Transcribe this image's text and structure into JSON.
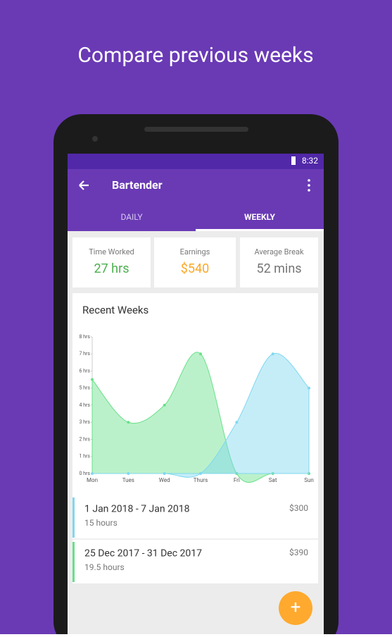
{
  "headline": "Compare previous weeks",
  "status": {
    "time": "8:32"
  },
  "app_bar": {
    "title": "Bartender"
  },
  "tabs": [
    "DAILY",
    "WEEKLY"
  ],
  "stats": [
    {
      "label": "Time Worked",
      "value": "27 hrs",
      "color": "#4caf50"
    },
    {
      "label": "Earnings",
      "value": "$540",
      "color": "#ffa726"
    },
    {
      "label": "Average Break",
      "value": "52 mins",
      "color": "#757575"
    }
  ],
  "chart_data": {
    "type": "area",
    "title": "Recent Weeks",
    "categories": [
      "Mon",
      "Tues",
      "Wed",
      "Thurs",
      "Fri",
      "Sat",
      "Sun"
    ],
    "series": [
      {
        "color": "#69e08a",
        "values": [
          5.5,
          3,
          4,
          7,
          0,
          0,
          0
        ]
      },
      {
        "color": "#7fd8f0",
        "values": [
          0,
          0,
          0,
          0,
          3,
          7,
          5
        ]
      }
    ],
    "ylim": [
      0,
      8
    ],
    "yticks": [
      {
        "value": 0,
        "label": "0 hrs"
      },
      {
        "value": 1,
        "label": "1 hrs"
      },
      {
        "value": 2,
        "label": "2 hrs"
      },
      {
        "value": 3,
        "label": "3 hrs"
      },
      {
        "value": 4,
        "label": "4 hrs"
      },
      {
        "value": 5,
        "label": "5 hrs"
      },
      {
        "value": 6,
        "label": "6 hrs"
      },
      {
        "value": 7,
        "label": "7 hrs"
      },
      {
        "value": 8,
        "label": "8 hrs"
      }
    ]
  },
  "weeks": [
    {
      "range": "1 Jan 2018 - 7 Jan 2018",
      "hours": "15 hours",
      "earnings": "$300",
      "color": "#7fd8f0"
    },
    {
      "range": "25 Dec 2017 - 31 Dec 2017",
      "hours": "19.5 hours",
      "earnings": "$390",
      "color": "#69e08a"
    }
  ],
  "fab": "+"
}
